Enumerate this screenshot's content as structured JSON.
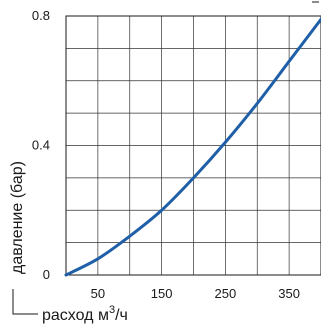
{
  "chart_data": {
    "type": "line",
    "xlabel": "расход м3/ч",
    "xlabel_parts": {
      "main": "расход м",
      "sup": "3",
      "tail": "/ч"
    },
    "ylabel": "давление (бар)",
    "x_ticks": [
      "50",
      "150",
      "250",
      "350"
    ],
    "x_tick_values": [
      50,
      150,
      250,
      350
    ],
    "y_ticks": [
      "0",
      "0.4",
      "0.8"
    ],
    "y_tick_values": [
      0,
      0.4,
      0.8
    ],
    "xlim": [
      0,
      400
    ],
    "ylim": [
      0,
      0.8
    ],
    "grid": true,
    "line_color": "#1f5fa8",
    "series": [
      {
        "x": [
          0,
          50,
          100,
          150,
          200,
          250,
          300,
          350,
          400
        ],
        "values": [
          0,
          0.05,
          0.12,
          0.2,
          0.3,
          0.41,
          0.53,
          0.66,
          0.79
        ]
      }
    ]
  }
}
